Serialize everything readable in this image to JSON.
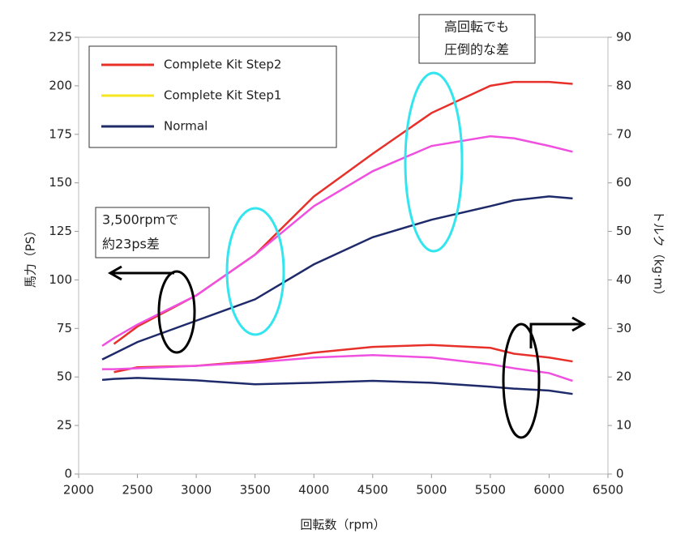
{
  "chart_data": {
    "type": "line",
    "x_label": "回転数（rpm）",
    "y_label": "馬力（PS）",
    "y2_label": "トルク（kg·m）",
    "x": [
      2200,
      2300,
      2500,
      3000,
      3500,
      4000,
      4500,
      5000,
      5500,
      5700,
      6000,
      6200
    ],
    "series": [
      {
        "name": "Complete Kit Step2",
        "color": "#e8302a",
        "legend_color": "#e8302a",
        "values": [
          null,
          67,
          76,
          92,
          113,
          143,
          165,
          186,
          200,
          202,
          202,
          201
        ]
      },
      {
        "name": "Complete Kit Step1",
        "color": "#f050e0",
        "legend_color": "#f5e61e",
        "values": [
          66,
          70,
          77,
          92,
          113,
          138,
          156,
          169,
          174,
          173,
          169,
          166
        ]
      },
      {
        "name": "Normal",
        "color": "#1e2a6a",
        "legend_color": "#1e2a6a",
        "values": [
          59,
          62,
          68,
          79,
          90,
          108,
          122,
          131,
          138,
          141,
          143,
          142
        ]
      },
      {
        "color": "#e8302a",
        "axis": "y2",
        "values": [
          null,
          21,
          22,
          22.3,
          23.3,
          25,
          26.2,
          26.6,
          26,
          24.8,
          24,
          23.2
        ]
      },
      {
        "color": "#f050e0",
        "axis": "y2",
        "values": [
          21.6,
          21.6,
          21.8,
          22.3,
          23,
          24,
          24.5,
          24,
          22.6,
          21.8,
          20.8,
          19.2
        ]
      },
      {
        "color": "#1e2a6a",
        "axis": "y2",
        "values": [
          19.4,
          19.6,
          19.8,
          19.3,
          18.5,
          18.8,
          19.2,
          18.8,
          18,
          17.6,
          17.2,
          16.5
        ]
      }
    ],
    "xlim": [
      2000,
      6500
    ],
    "xticks": [
      2000,
      2500,
      3000,
      3500,
      4000,
      4500,
      5000,
      5500,
      6000,
      6500
    ],
    "ylim": [
      0,
      225
    ],
    "yticks": [
      0,
      25,
      50,
      75,
      100,
      125,
      150,
      175,
      200,
      225
    ],
    "y2lim": [
      0,
      90
    ],
    "y2ticks": [
      0,
      10,
      20,
      30,
      40,
      50,
      60,
      70,
      80,
      90
    ],
    "annotations": [
      "3,500rpmで",
      "約23ps差",
      "高回転でも",
      "圧倒的な差"
    ]
  }
}
